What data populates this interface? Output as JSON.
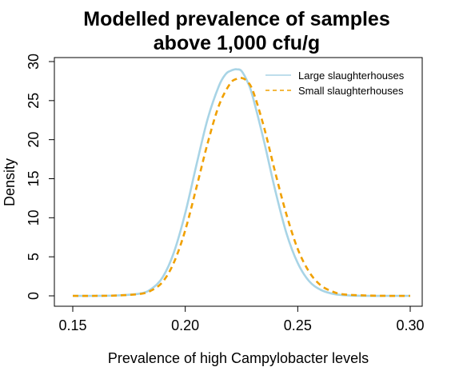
{
  "chart_data": {
    "type": "line",
    "title": "Modelled prevalence of samples",
    "subtitle": "above 1,000 cfu/g",
    "xlabel": "Prevalence of high Campylobacter levels",
    "ylabel": "Density",
    "xlim": [
      0.15,
      0.3
    ],
    "ylim": [
      0,
      30
    ],
    "x_ticks": [
      0.15,
      0.2,
      0.25,
      0.3
    ],
    "x_tick_labels": [
      "0.15",
      "0.20",
      "0.25",
      "0.30"
    ],
    "y_ticks": [
      0,
      5,
      10,
      15,
      20,
      25,
      30
    ],
    "y_tick_labels": [
      "0",
      "5",
      "10",
      "15",
      "20",
      "25",
      "30"
    ],
    "grid": false,
    "legend_position": "top-right",
    "series": [
      {
        "name": "Large slaughterhouses",
        "color": "#a8d4e6",
        "style": "solid",
        "x": [
          0.15,
          0.16,
          0.17,
          0.18,
          0.185,
          0.19,
          0.195,
          0.2,
          0.205,
          0.21,
          0.215,
          0.218,
          0.22,
          0.222,
          0.223,
          0.225,
          0.228,
          0.23,
          0.235,
          0.24,
          0.245,
          0.25,
          0.255,
          0.26,
          0.265,
          0.27,
          0.28,
          0.29,
          0.3
        ],
        "y": [
          0,
          0,
          0.05,
          0.3,
          0.9,
          2.4,
          5.6,
          10.6,
          16.8,
          22.7,
          26.9,
          28.4,
          28.8,
          29.0,
          29.0,
          28.8,
          27.2,
          25.5,
          19.8,
          13.5,
          8.0,
          4.2,
          1.9,
          0.8,
          0.3,
          0.1,
          0,
          0,
          0
        ]
      },
      {
        "name": "Small slaughterhouses",
        "color": "#f0a000",
        "style": "dashed",
        "x": [
          0.15,
          0.16,
          0.17,
          0.18,
          0.185,
          0.19,
          0.195,
          0.2,
          0.205,
          0.21,
          0.215,
          0.22,
          0.223,
          0.225,
          0.227,
          0.23,
          0.235,
          0.24,
          0.245,
          0.25,
          0.255,
          0.26,
          0.265,
          0.27,
          0.28,
          0.29,
          0.3
        ],
        "y": [
          0,
          0,
          0.05,
          0.25,
          0.7,
          1.8,
          4.3,
          8.4,
          13.9,
          19.6,
          24.4,
          27.2,
          27.8,
          27.9,
          27.6,
          26.3,
          21.6,
          15.8,
          10.4,
          6.0,
          3.1,
          1.4,
          0.6,
          0.2,
          0.05,
          0,
          0
        ]
      }
    ]
  }
}
